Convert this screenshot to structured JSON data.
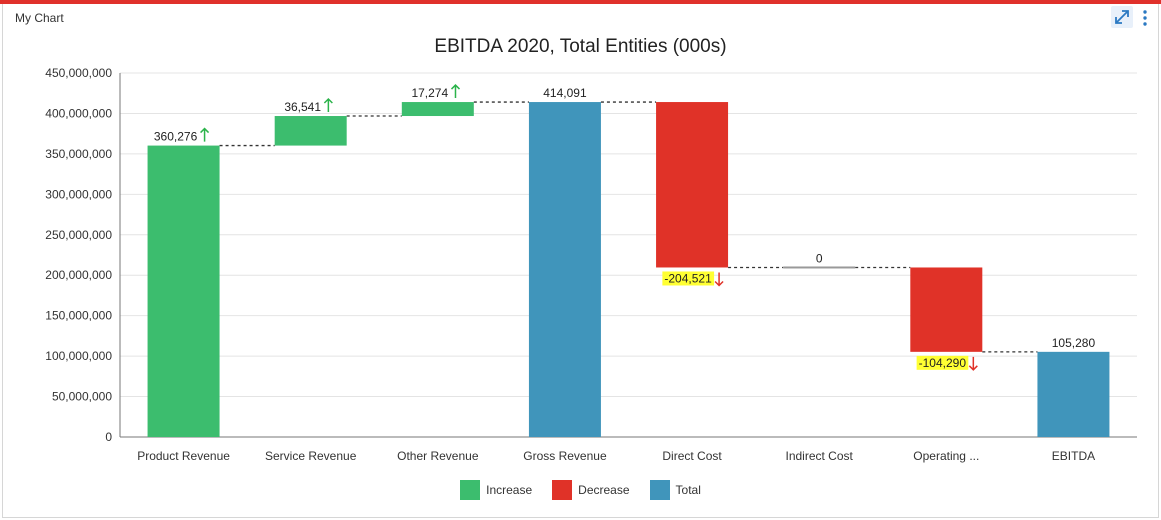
{
  "panel": {
    "title": "My Chart"
  },
  "toolbar": {
    "expand_icon": "expand-icon",
    "menu_icon": "more-vertical-icon"
  },
  "colors": {
    "increase": "#3cbd6e",
    "decrease": "#e03228",
    "total": "#4095bb",
    "zero": "#999999",
    "highlight": "#ffff33",
    "up_arrow": "#2bb34a",
    "down_arrow": "#e03228",
    "top_bar": "#e0312b"
  },
  "chart_data": {
    "type": "waterfall",
    "title": "EBITDA 2020, Total Entities (000s)",
    "categories": [
      "Product Revenue",
      "Service Revenue",
      "Other Revenue",
      "Gross Revenue",
      "Direct Cost",
      "Indirect Cost",
      "Operating ...",
      "EBITDA"
    ],
    "bars": [
      {
        "kind": "increase",
        "start": 0,
        "end": 360276000,
        "label": "360,276",
        "arrow": "up",
        "highlight": false
      },
      {
        "kind": "increase",
        "start": 360276000,
        "end": 396817000,
        "label": "36,541",
        "arrow": "up",
        "highlight": false
      },
      {
        "kind": "increase",
        "start": 396817000,
        "end": 414091000,
        "label": "17,274",
        "arrow": "up",
        "highlight": false
      },
      {
        "kind": "total",
        "start": 0,
        "end": 414091000,
        "label": "414,091",
        "arrow": "",
        "highlight": false
      },
      {
        "kind": "decrease",
        "start": 414091000,
        "end": 209570000,
        "label": "-204,521",
        "arrow": "down",
        "highlight": true
      },
      {
        "kind": "zero",
        "start": 209570000,
        "end": 209570000,
        "label": "0",
        "arrow": "",
        "highlight": false
      },
      {
        "kind": "decrease",
        "start": 209570000,
        "end": 105280000,
        "label": "-104,290",
        "arrow": "down",
        "highlight": true
      },
      {
        "kind": "total",
        "start": 0,
        "end": 105280000,
        "label": "105,280",
        "arrow": "",
        "highlight": false
      }
    ],
    "yticks": [
      0,
      50000000,
      100000000,
      150000000,
      200000000,
      250000000,
      300000000,
      350000000,
      400000000,
      450000000
    ],
    "ytick_labels": [
      "0",
      "50,000,000",
      "100,000,000",
      "150,000,000",
      "200,000,000",
      "250,000,000",
      "300,000,000",
      "350,000,000",
      "400,000,000",
      "450,000,000"
    ],
    "ylim": [
      0,
      450000000
    ],
    "grid": true,
    "connectors": "dotted",
    "legend": {
      "position": "bottom-center",
      "items": [
        {
          "label": "Increase",
          "kind": "increase"
        },
        {
          "label": "Decrease",
          "kind": "decrease"
        },
        {
          "label": "Total",
          "kind": "total"
        }
      ]
    }
  }
}
